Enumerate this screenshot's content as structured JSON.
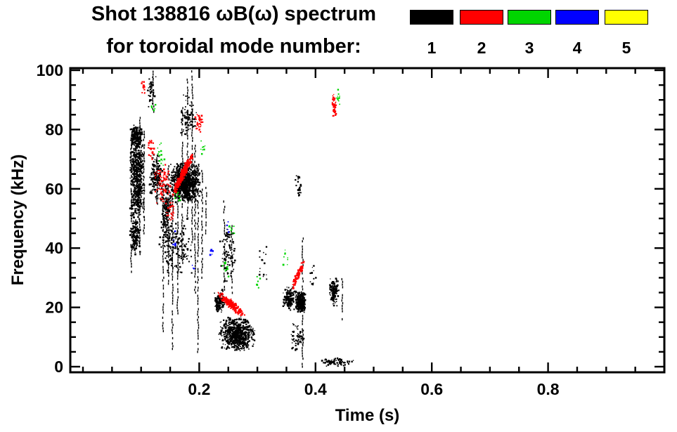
{
  "chart_data": {
    "type": "scatter",
    "title": "Shot 138816 ωB(ω) spectrum",
    "subtitle": "for toroidal mode number:",
    "xlabel": "Time (s)",
    "ylabel": "Frequency (kHz)",
    "xlim": [
      0,
      1.0
    ],
    "ylim": [
      0,
      100
    ],
    "xticks": [
      0.2,
      0.4,
      0.6,
      0.8
    ],
    "x_minor_step": 0.05,
    "yticks": [
      0,
      20,
      40,
      60,
      80,
      100
    ],
    "y_minor_step": 5,
    "grid": false,
    "legend_position": "top-right",
    "legend": [
      {
        "label": "1",
        "color": "#000000"
      },
      {
        "label": "2",
        "color": "#ff0000"
      },
      {
        "label": "3",
        "color": "#00d500"
      },
      {
        "label": "4",
        "color": "#0000ff"
      },
      {
        "label": "5",
        "color": "#ffff00"
      }
    ],
    "series": [
      {
        "name": "n=1",
        "color": "#000000",
        "clusters": [
          {
            "t": 0.093,
            "dt": 0.013,
            "f": 64,
            "df": 15,
            "n": 550
          },
          {
            "t": 0.092,
            "dt": 0.012,
            "f": 78,
            "df": 4,
            "n": 180
          },
          {
            "t": 0.09,
            "dt": 0.01,
            "f": 45,
            "df": 8,
            "n": 150
          },
          {
            "t": 0.118,
            "dt": 0.008,
            "f": 93,
            "df": 6,
            "n": 40
          },
          {
            "t": 0.125,
            "dt": 0.012,
            "f": 64,
            "df": 8,
            "n": 150
          },
          {
            "t": 0.143,
            "dt": 0.01,
            "f": 52,
            "df": 12,
            "n": 180
          },
          {
            "t": 0.175,
            "dt": 0.028,
            "f": 62,
            "df": 7,
            "n": 900
          },
          {
            "t": 0.182,
            "dt": 0.015,
            "f": 84,
            "df": 8,
            "n": 80
          },
          {
            "t": 0.16,
            "dt": 0.03,
            "f": 40,
            "df": 10,
            "n": 150
          },
          {
            "t": 0.265,
            "dt": 0.032,
            "f": 11,
            "df": 6,
            "n": 650
          },
          {
            "t": 0.235,
            "dt": 0.01,
            "f": 22,
            "df": 4,
            "n": 120
          },
          {
            "t": 0.25,
            "dt": 0.015,
            "f": 38,
            "df": 10,
            "n": 90
          },
          {
            "t": 0.355,
            "dt": 0.012,
            "f": 23,
            "df": 4,
            "n": 150
          },
          {
            "t": 0.374,
            "dt": 0.01,
            "f": 22,
            "df": 4,
            "n": 280
          },
          {
            "t": 0.37,
            "dt": 0.012,
            "f": 10,
            "df": 5,
            "n": 60
          },
          {
            "t": 0.371,
            "dt": 0.006,
            "f": 61,
            "df": 4,
            "n": 25
          },
          {
            "t": 0.432,
            "dt": 0.009,
            "f": 25,
            "df": 5,
            "n": 150
          },
          {
            "t": 0.438,
            "dt": 0.03,
            "f": 1.5,
            "df": 1.5,
            "n": 90
          },
          {
            "t": 0.31,
            "dt": 0.008,
            "f": 35,
            "df": 8,
            "n": 15
          },
          {
            "t": 0.395,
            "dt": 0.006,
            "f": 30,
            "df": 6,
            "n": 12
          }
        ],
        "streaks": [
          {
            "t": 0.083,
            "f0": 32,
            "f1": 78
          },
          {
            "t": 0.098,
            "f0": 38,
            "f1": 84
          },
          {
            "t": 0.105,
            "f0": 45,
            "f1": 80
          },
          {
            "t": 0.121,
            "f0": 86,
            "f1": 100
          },
          {
            "t": 0.128,
            "f0": 55,
            "f1": 72
          },
          {
            "t": 0.138,
            "f0": 12,
            "f1": 62
          },
          {
            "t": 0.147,
            "f0": 28,
            "f1": 68
          },
          {
            "t": 0.154,
            "f0": 6,
            "f1": 58
          },
          {
            "t": 0.163,
            "f0": 18,
            "f1": 66
          },
          {
            "t": 0.171,
            "f0": 35,
            "f1": 88
          },
          {
            "t": 0.18,
            "f0": 50,
            "f1": 97
          },
          {
            "t": 0.188,
            "f0": 42,
            "f1": 100
          },
          {
            "t": 0.193,
            "f0": 25,
            "f1": 75
          },
          {
            "t": 0.198,
            "f0": 5,
            "f1": 68
          },
          {
            "t": 0.205,
            "f0": 30,
            "f1": 66
          },
          {
            "t": 0.212,
            "f0": 45,
            "f1": 62
          },
          {
            "t": 0.243,
            "f0": 26,
            "f1": 56
          },
          {
            "t": 0.256,
            "f0": 24,
            "f1": 48
          },
          {
            "t": 0.378,
            "f0": 0,
            "f1": 44
          },
          {
            "t": 0.446,
            "f0": 16,
            "f1": 30
          }
        ]
      },
      {
        "name": "n=3",
        "color": "#00d500",
        "clusters": [
          {
            "t": 0.134,
            "dt": 0.009,
            "f": 72,
            "df": 5,
            "n": 14
          },
          {
            "t": 0.163,
            "dt": 0.008,
            "f": 57,
            "df": 3,
            "n": 10
          },
          {
            "t": 0.248,
            "dt": 0.01,
            "f": 33,
            "df": 5,
            "n": 12
          },
          {
            "t": 0.255,
            "dt": 0.007,
            "f": 46,
            "df": 3,
            "n": 8
          },
          {
            "t": 0.35,
            "dt": 0.007,
            "f": 37,
            "df": 3,
            "n": 8
          },
          {
            "t": 0.44,
            "dt": 0.004,
            "f": 91,
            "df": 3,
            "n": 10
          },
          {
            "t": 0.12,
            "dt": 0.005,
            "f": 88,
            "df": 3,
            "n": 6
          },
          {
            "t": 0.3,
            "dt": 0.005,
            "f": 28,
            "df": 3,
            "n": 6
          },
          {
            "t": 0.205,
            "dt": 0.006,
            "f": 75,
            "df": 4,
            "n": 8
          }
        ],
        "streaks": []
      },
      {
        "name": "n=4",
        "color": "#0000ff",
        "clusters": [
          {
            "t": 0.155,
            "dt": 0.005,
            "f": 43,
            "df": 3,
            "n": 6
          },
          {
            "t": 0.22,
            "dt": 0.004,
            "f": 37,
            "df": 3,
            "n": 5
          },
          {
            "t": 0.25,
            "dt": 0.004,
            "f": 47,
            "df": 2,
            "n": 4
          },
          {
            "t": 0.19,
            "dt": 0.003,
            "f": 33,
            "df": 2,
            "n": 3
          }
        ],
        "streaks": []
      },
      {
        "name": "n=5",
        "color": "#ffff00",
        "clusters": [],
        "streaks": []
      },
      {
        "name": "n=2",
        "color": "#ff0000",
        "clusters": [
          {
            "t": 0.172,
            "dt": 0.018,
            "f": 65,
            "df": 2.2,
            "n": 320,
            "slope": 380
          },
          {
            "t": 0.138,
            "dt": 0.018,
            "f": 62,
            "df": 7,
            "n": 80
          },
          {
            "t": 0.2,
            "dt": 0.007,
            "f": 82,
            "df": 4,
            "n": 35
          },
          {
            "t": 0.255,
            "dt": 0.024,
            "f": 21,
            "df": 1.8,
            "n": 220,
            "slope": -160
          },
          {
            "t": 0.37,
            "dt": 0.011,
            "f": 31,
            "df": 2,
            "n": 90,
            "slope": 380
          },
          {
            "t": 0.432,
            "dt": 0.004,
            "f": 88,
            "df": 4,
            "n": 60
          },
          {
            "t": 0.104,
            "dt": 0.005,
            "f": 95,
            "df": 3,
            "n": 14
          },
          {
            "t": 0.152,
            "dt": 0.01,
            "f": 52,
            "df": 4,
            "n": 30
          },
          {
            "t": 0.118,
            "dt": 0.008,
            "f": 73,
            "df": 4,
            "n": 25
          }
        ],
        "streaks": []
      }
    ]
  }
}
